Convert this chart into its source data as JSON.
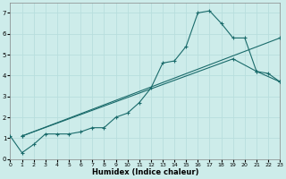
{
  "title": "",
  "xlabel": "Humidex (Indice chaleur)",
  "background_color": "#cdecea",
  "grid_color": "#b8dedd",
  "line_color": "#1a6b6b",
  "xlim": [
    0,
    23
  ],
  "ylim": [
    0,
    7.5
  ],
  "xticks": [
    0,
    1,
    2,
    3,
    4,
    5,
    6,
    7,
    8,
    9,
    10,
    11,
    12,
    13,
    14,
    15,
    16,
    17,
    18,
    19,
    20,
    21,
    22,
    23
  ],
  "yticks": [
    0,
    1,
    2,
    3,
    4,
    5,
    6,
    7
  ],
  "line1_x": [
    0,
    1,
    2,
    3,
    4,
    5,
    6,
    7,
    8,
    9,
    10,
    11,
    12,
    13,
    14,
    15,
    16,
    17,
    18,
    19,
    20,
    21,
    22,
    23
  ],
  "line1_y": [
    1.1,
    0.3,
    0.7,
    1.2,
    1.2,
    1.2,
    1.3,
    1.5,
    1.5,
    2.0,
    2.2,
    2.7,
    3.4,
    4.6,
    4.7,
    5.4,
    7.0,
    7.1,
    6.5,
    5.8,
    5.8,
    4.2,
    4.1,
    3.7
  ],
  "line2_x": [
    1,
    23
  ],
  "line2_y": [
    1.1,
    5.8
  ],
  "line3_x": [
    1,
    19,
    21,
    23
  ],
  "line3_y": [
    1.1,
    4.8,
    4.2,
    3.7
  ]
}
